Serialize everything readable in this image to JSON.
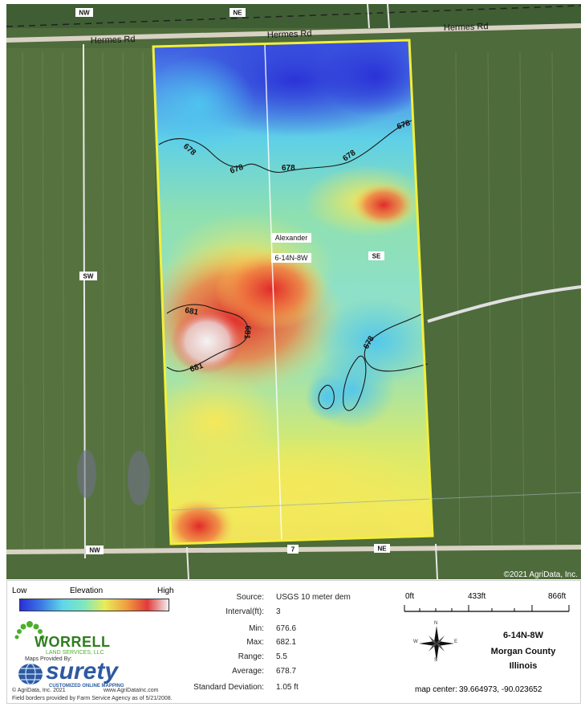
{
  "map": {
    "roads": {
      "north_road": "Hermes Rd",
      "north_road_2": "Hermes Rd",
      "north_road_3": "Hermes Rd"
    },
    "section_labels": {
      "nw_top": "NW",
      "ne_top": "NE",
      "sw_left": "SW",
      "se_center": "SE",
      "nw_bottom": "NW",
      "ne_bottom": "NE",
      "section_7": "7"
    },
    "field_labels": {
      "name": "Alexander",
      "section": "6-14N-8W"
    },
    "contours": {
      "c678_a": "678",
      "c678_b": "678",
      "c678_c": "678",
      "c678_d": "678",
      "c678_e": "678",
      "c678_f": "678",
      "c681_a": "681",
      "c681_b": "681",
      "c681_c": "681"
    },
    "copyright": "©2021 AgriData, Inc."
  },
  "legend": {
    "low": "Low",
    "title": "Elevation",
    "high": "High"
  },
  "stats": {
    "source_label": "Source:",
    "source": "USGS 10 meter dem",
    "interval_label": "Interval(ft):",
    "interval": "3",
    "min_label": "Min:",
    "min": "676.6",
    "max_label": "Max:",
    "max": "682.1",
    "range_label": "Range:",
    "range": "5.5",
    "average_label": "Average:",
    "average": "678.7",
    "stddev_label": "Standard Deviation:",
    "stddev": "1.05 ft"
  },
  "scale": {
    "t0": "0ft",
    "t1": "433ft",
    "t2": "866ft"
  },
  "compass": {
    "n": "N",
    "s": "S",
    "e": "E",
    "w": "W"
  },
  "location": {
    "section": "6-14N-8W",
    "county": "Morgan County",
    "state": "Illinois",
    "map_center_label": "map center:",
    "map_center": "39.664973, -90.023652"
  },
  "branding": {
    "worrell": "WORRELL",
    "worrell_sub": "LAND SERVICES, LLC",
    "maps_provided_by": "Maps Provided By:",
    "surety": "surety",
    "surety_sub": "CUSTOMIZED ONLINE MAPPING",
    "agridata": "© AgriData, Inc. 2021",
    "url": "www.AgriDataInc.com",
    "field_borders": "Field borders provided by Farm Service Agency as of 5/21/2008."
  },
  "colors": {
    "field_border": "#f2ef3a",
    "low": "#2a2fd6",
    "mid": "#5ee0e8",
    "yellow": "#f3ee5a",
    "high": "#e23a3a",
    "peak": "#ececec"
  }
}
